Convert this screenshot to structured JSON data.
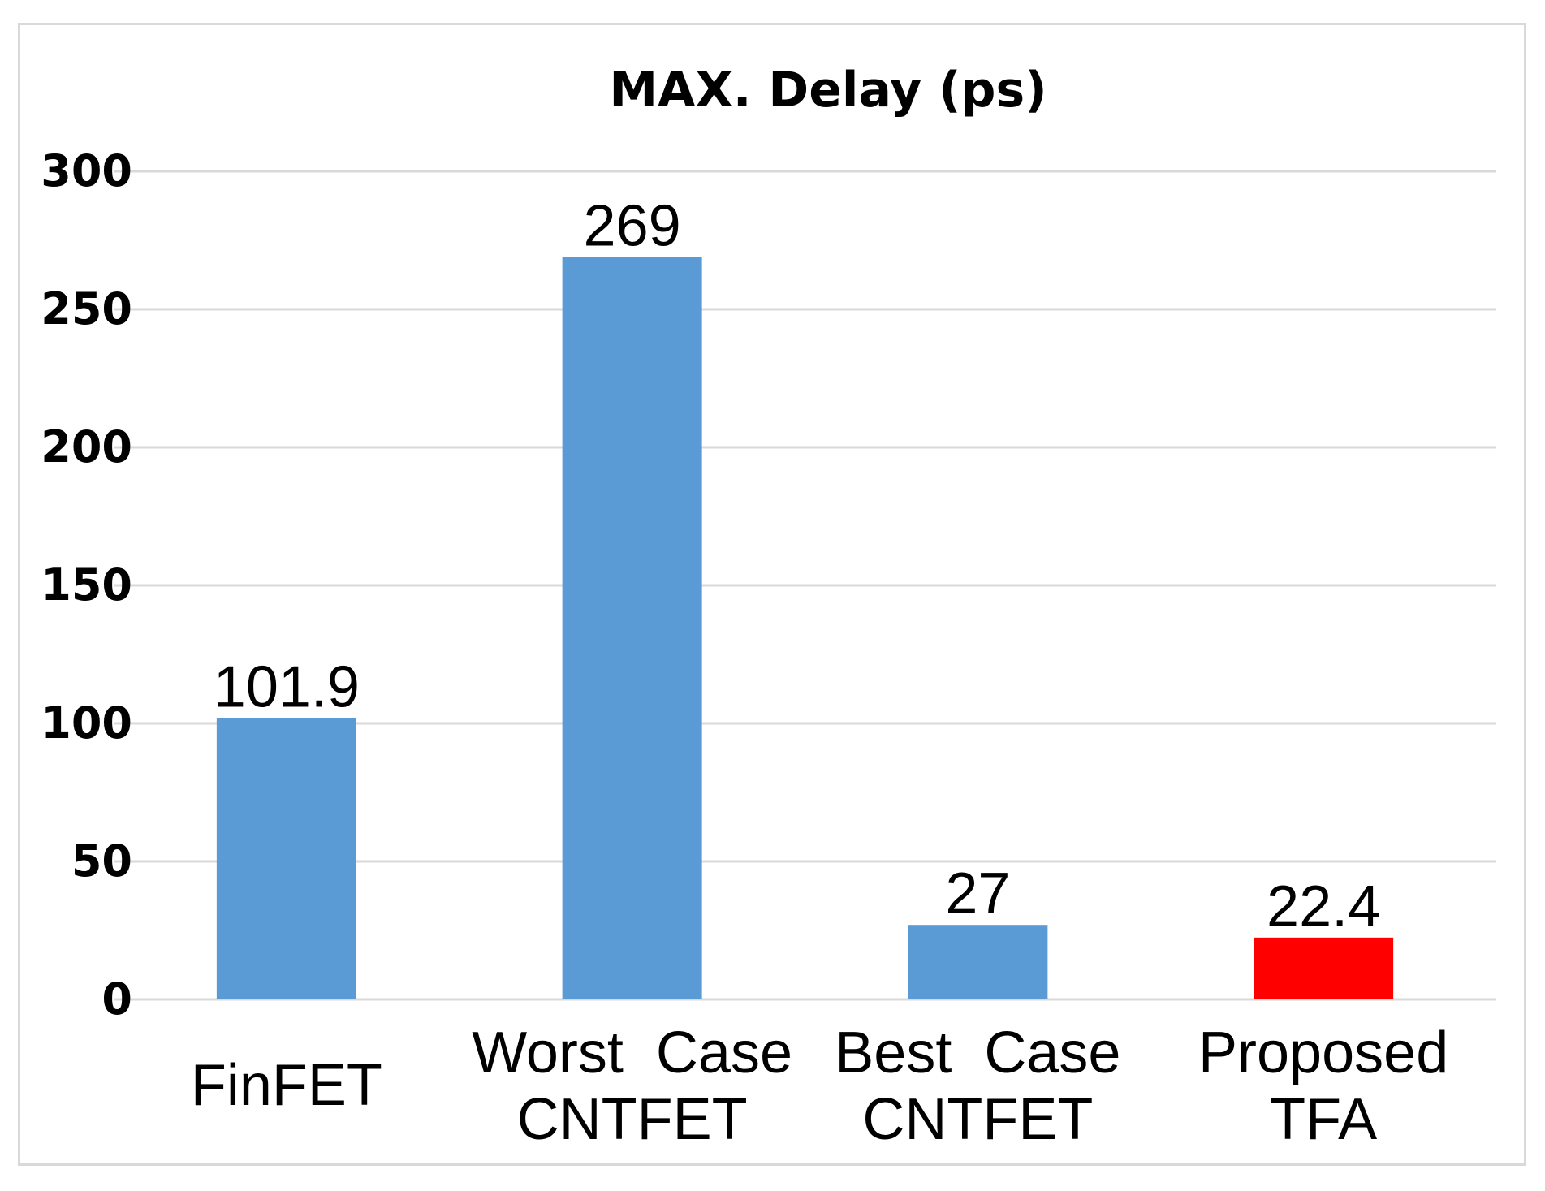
{
  "chart_data": {
    "type": "bar",
    "title": "MAX. Delay (ps)",
    "xlabel": "",
    "ylabel": "",
    "categories": [
      [
        "FinFET"
      ],
      [
        "Worst  Case",
        "CNTFET"
      ],
      [
        "Best  Case",
        "CNTFET"
      ],
      [
        "Proposed",
        "TFA"
      ]
    ],
    "values": [
      101.9,
      269,
      27,
      22.4
    ],
    "data_labels": [
      "101.9",
      "269",
      "27",
      "22.4"
    ],
    "bar_colors": [
      "#5b9bd5",
      "#5b9bd5",
      "#5b9bd5",
      "#ff0000"
    ],
    "ylim": [
      0,
      300
    ],
    "yticks": [
      0,
      50,
      100,
      150,
      200,
      250,
      300
    ],
    "grid": true,
    "gridline_color": "#d9d9d9",
    "legend": "none"
  }
}
